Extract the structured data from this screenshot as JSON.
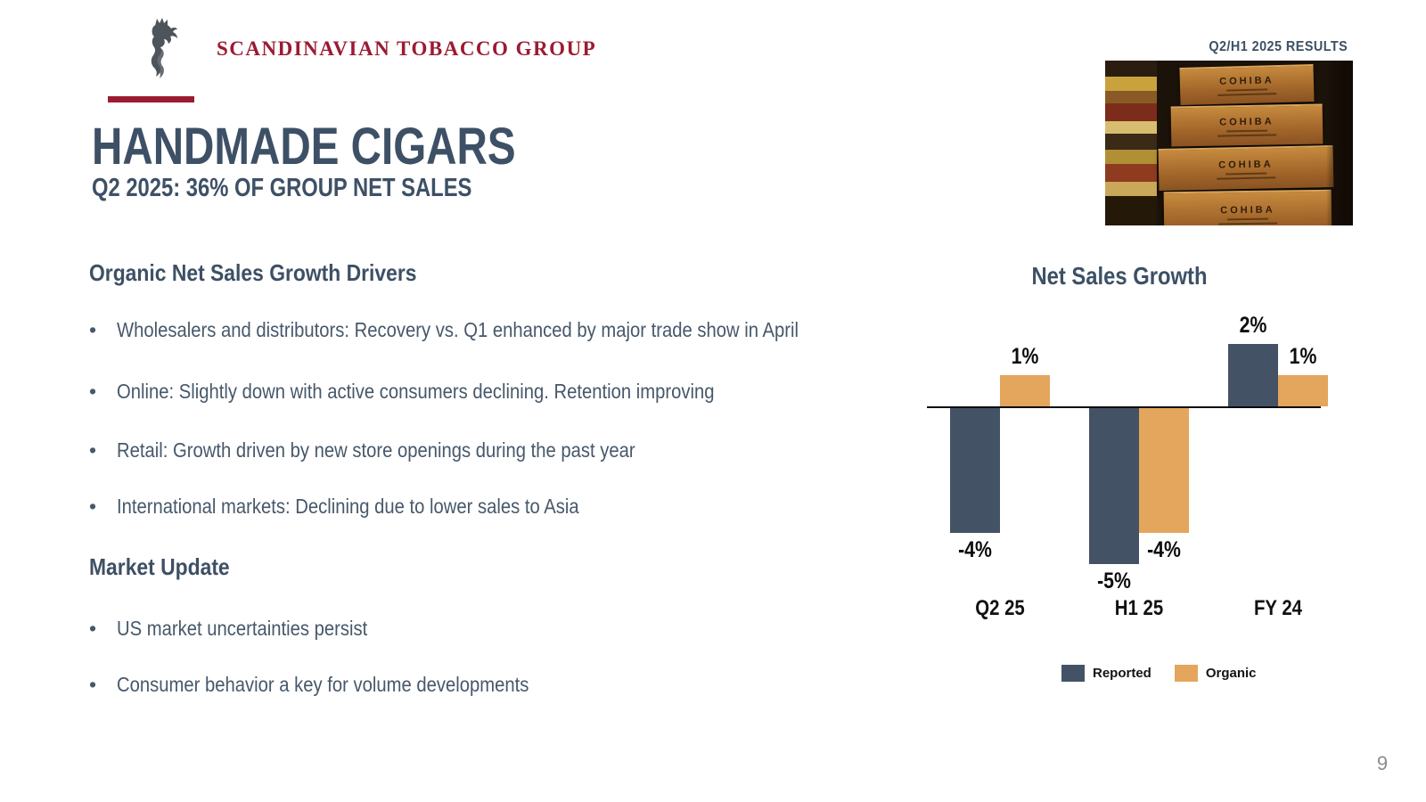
{
  "header": {
    "brand": "SCANDINAVIAN TOBACCO GROUP",
    "results_tag": "Q2/H1 2025 RESULTS"
  },
  "title": {
    "main": "HANDMADE CIGARS",
    "subtitle": "Q2 2025: 36% OF GROUP NET SALES"
  },
  "content": {
    "sections": [
      {
        "heading": "Organic Net Sales Growth Drivers",
        "bullets": [
          "Wholesalers and distributors: Recovery vs. Q1 enhanced by major trade show in April",
          "Online: Slightly down with active consumers declining. Retention improving",
          "Retail: Growth driven by new store openings during the past year",
          "International markets: Declining due to lower sales to Asia"
        ]
      },
      {
        "heading": "Market Update",
        "bullets": [
          "US market uncertainties persist",
          "Consumer behavior a key for volume developments"
        ]
      }
    ]
  },
  "photo": {
    "alt": "Stack of wooden COHIBA handmade cigar boxes",
    "brand": "COHIBA"
  },
  "chart_data": {
    "type": "bar",
    "title": "Net Sales Growth",
    "categories": [
      "Q2 25",
      "H1 25",
      "FY 24"
    ],
    "series": [
      {
        "name": "Reported",
        "color": "#445266",
        "values": [
          -4,
          -5,
          2
        ],
        "labels": [
          "-4%",
          "-5%",
          "2%"
        ]
      },
      {
        "name": "Organic",
        "color": "#E3A65C",
        "values": [
          1,
          -4,
          1
        ],
        "labels": [
          "1%",
          "-4%",
          "1%"
        ]
      }
    ],
    "unit": "%",
    "ylim": [
      -6,
      3
    ],
    "grid": false,
    "data_labels": true,
    "legend_position": "bottom",
    "baseline": "zero-axis-line"
  },
  "theme": {
    "brand_red": "#9B1B32",
    "slate": "#3D5065",
    "body_text": "#47586A",
    "page_number_gray": "#8C8C8C"
  },
  "footer": {
    "page_number": "9"
  }
}
